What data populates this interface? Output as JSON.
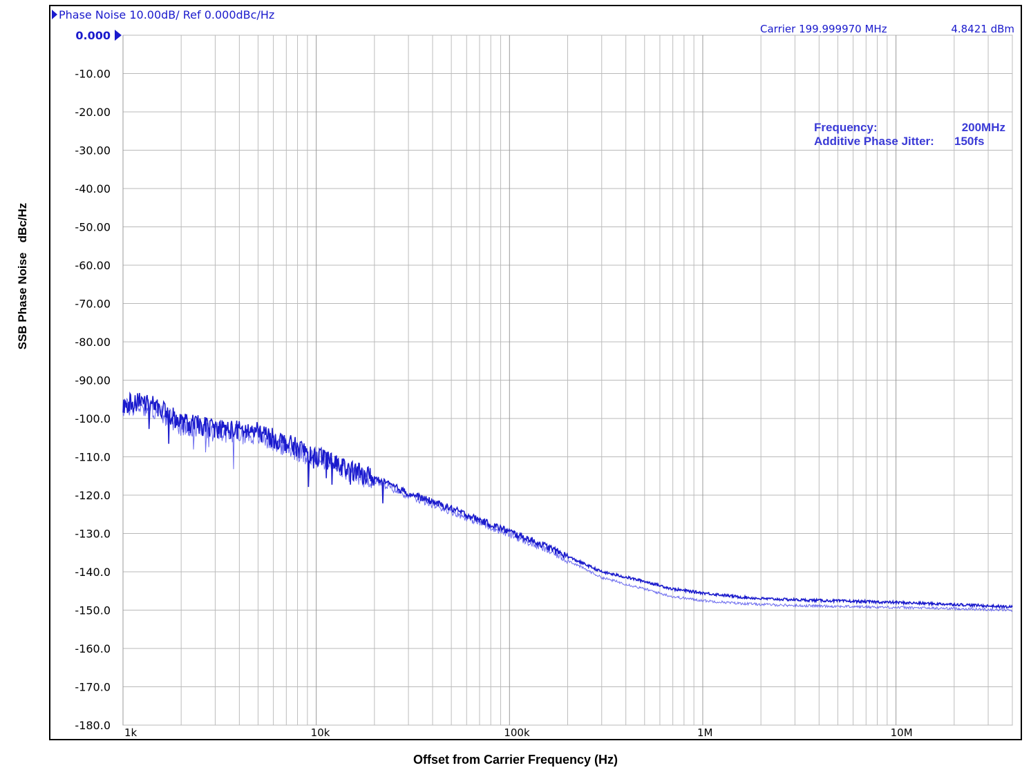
{
  "chart_data": {
    "type": "line",
    "header": "Phase Noise 10.00dB/ Ref 0.000dBc/Hz",
    "carrier_label": "Carrier 199.999970 MHz",
    "carrier_power": "4.8421 dBm",
    "annotations": [
      {
        "key": "Frequency:",
        "value": "200MHz"
      },
      {
        "key": "Additive Phase Jitter:",
        "value": "150fs"
      }
    ],
    "xlabel": "Offset from Carrier Frequency (Hz)",
    "ylabel": "SSB Phase Noise   dBc/Hz",
    "x_scale": "log",
    "xlim": [
      1000,
      40000000
    ],
    "ylim": [
      -180,
      0
    ],
    "y_ticks": [
      "0.000",
      "-10.00",
      "-20.00",
      "-30.00",
      "-40.00",
      "-50.00",
      "-60.00",
      "-70.00",
      "-80.00",
      "-90.00",
      "-100.0",
      "-110.0",
      "-120.0",
      "-130.0",
      "-140.0",
      "-150.0",
      "-160.0",
      "-170.0",
      "-180.0"
    ],
    "x_ticks": [
      {
        "value": 1000,
        "label": "1k"
      },
      {
        "value": 10000,
        "label": "10k"
      },
      {
        "value": 100000,
        "label": "100k"
      },
      {
        "value": 1000000,
        "label": "1M"
      },
      {
        "value": 10000000,
        "label": "10M"
      }
    ],
    "grid": true,
    "series": [
      {
        "color": "#1a1acc",
        "x": [
          1000,
          1200,
          1500,
          2000,
          3000,
          5000,
          7000,
          10000,
          15000,
          20000,
          30000,
          50000,
          70000,
          100000,
          150000,
          200000,
          300000,
          500000,
          700000,
          1000000,
          1500000,
          2000000,
          3000000,
          5000000,
          10000000,
          20000000,
          40000000
        ],
        "y": [
          -96.5,
          -95.5,
          -97,
          -101,
          -102.5,
          -103.5,
          -106.5,
          -109.5,
          -113.5,
          -115.5,
          -119.5,
          -123.5,
          -126.5,
          -129.5,
          -133,
          -136,
          -140,
          -142.5,
          -144.5,
          -145.5,
          -146.5,
          -147,
          -147.3,
          -147.6,
          -148,
          -148.5,
          -149.2
        ]
      },
      {
        "color": "#6a6aee",
        "x": [
          1000,
          1200,
          1500,
          2000,
          3000,
          5000,
          7000,
          10000,
          15000,
          20000,
          30000,
          50000,
          70000,
          100000,
          150000,
          200000,
          300000,
          500000,
          700000,
          1000000,
          1500000,
          2000000,
          3000000,
          5000000,
          10000000,
          20000000,
          40000000
        ],
        "y": [
          -97.5,
          -96.5,
          -98,
          -102,
          -103.5,
          -104.5,
          -107.5,
          -110.5,
          -114.5,
          -116.3,
          -120.3,
          -124.3,
          -127.3,
          -130.3,
          -134,
          -137,
          -141.5,
          -144.5,
          -146.5,
          -147.5,
          -148.2,
          -148.5,
          -148.8,
          -149,
          -149.3,
          -149.6,
          -150
        ]
      }
    ]
  }
}
